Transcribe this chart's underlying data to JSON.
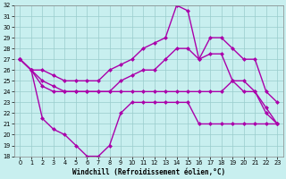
{
  "title": "",
  "xlabel": "Windchill (Refroidissement éolien,°C)",
  "bg_color": "#c8efef",
  "line_color": "#aa00aa",
  "grid_color": "#99cccc",
  "xlim": [
    -0.5,
    23.5
  ],
  "ylim": [
    18,
    32
  ],
  "yticks": [
    18,
    19,
    20,
    21,
    22,
    23,
    24,
    25,
    26,
    27,
    28,
    29,
    30,
    31,
    32
  ],
  "xticks": [
    0,
    1,
    2,
    3,
    4,
    5,
    6,
    7,
    8,
    9,
    10,
    11,
    12,
    13,
    14,
    15,
    16,
    17,
    18,
    19,
    20,
    21,
    22,
    23
  ],
  "line1_x": [
    0,
    1,
    2,
    3,
    4,
    5,
    6,
    7,
    8,
    9,
    10,
    11,
    12,
    13,
    14,
    15,
    16,
    17,
    18,
    19,
    20,
    21,
    22,
    23
  ],
  "line1_y": [
    27,
    26,
    25,
    24.5,
    24,
    24,
    24,
    24,
    24,
    24,
    24,
    24,
    24,
    24,
    24,
    24,
    24,
    24,
    24,
    25,
    25,
    24,
    22,
    21
  ],
  "line2_x": [
    0,
    1,
    2,
    3,
    4,
    5,
    6,
    7,
    8,
    9,
    10,
    11,
    12,
    13,
    14,
    15,
    16,
    17,
    18,
    19,
    20,
    21,
    22,
    23
  ],
  "line2_y": [
    27,
    26,
    26,
    25.5,
    25,
    25,
    25,
    25,
    26,
    26.5,
    27,
    28,
    28.5,
    29,
    32,
    31.5,
    27,
    29,
    29,
    28,
    27,
    27,
    24,
    23
  ],
  "line3_x": [
    0,
    1,
    2,
    3,
    4,
    5,
    6,
    7,
    8,
    9,
    10,
    11,
    12,
    13,
    14,
    15,
    16,
    17,
    18,
    19,
    20,
    21,
    22,
    23
  ],
  "line3_y": [
    27,
    26,
    24.5,
    24,
    24,
    24,
    24,
    24,
    24,
    25,
    25.5,
    26,
    26,
    27,
    28,
    28,
    27,
    27.5,
    27.5,
    25,
    24,
    24,
    22.5,
    21
  ],
  "line4_x": [
    0,
    1,
    2,
    3,
    4,
    5,
    6,
    7,
    8,
    9,
    10,
    11,
    12,
    13,
    14,
    15,
    16,
    17,
    18,
    19,
    20,
    21,
    22,
    23
  ],
  "line4_y": [
    27,
    26,
    21.5,
    20.5,
    20,
    19,
    18,
    18,
    19,
    22,
    23,
    23,
    23,
    23,
    23,
    23,
    21,
    21,
    21,
    21,
    21,
    21,
    21,
    21
  ],
  "marker": "D",
  "markersize": 2.5,
  "linewidth": 1.0
}
